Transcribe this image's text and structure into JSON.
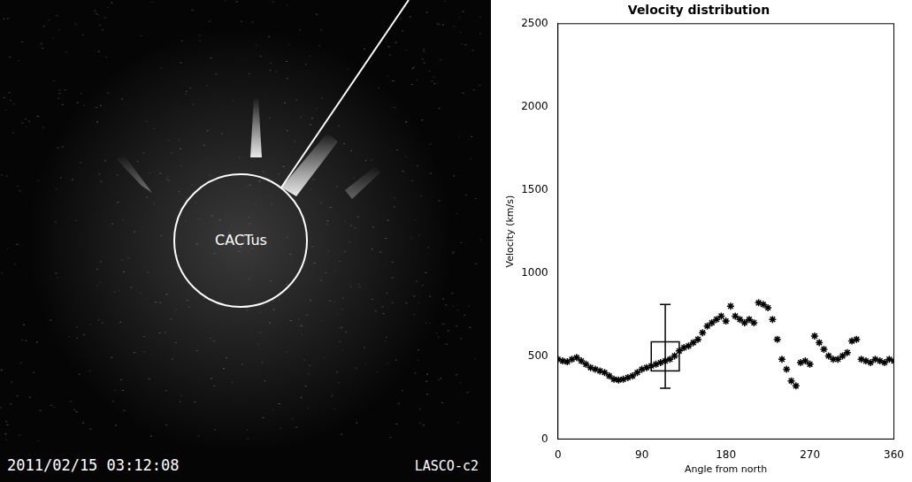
{
  "image": {
    "label": "CACTus",
    "timestamp": "2011/02/15 03:12:08",
    "instrument": "LASCO-c2"
  },
  "chart_data": {
    "type": "scatter",
    "title": "Velocity distribution",
    "x_label": "Angle from north",
    "y_label": "Velocity (km/s)",
    "x": [
      0,
      5,
      10,
      15,
      20,
      25,
      30,
      35,
      40,
      45,
      50,
      55,
      60,
      65,
      70,
      75,
      80,
      85,
      90,
      95,
      100,
      105,
      110,
      115,
      120,
      125,
      130,
      135,
      140,
      145,
      150,
      155,
      160,
      165,
      170,
      175,
      180,
      185,
      190,
      195,
      200,
      205,
      210,
      215,
      220,
      225,
      230,
      235,
      240,
      245,
      250,
      255,
      260,
      265,
      270,
      275,
      280,
      285,
      290,
      295,
      300,
      305,
      310,
      315,
      320,
      325,
      330,
      335,
      340,
      345,
      350,
      355,
      360
    ],
    "values": [
      480,
      470,
      465,
      480,
      490,
      470,
      450,
      430,
      420,
      410,
      400,
      380,
      360,
      355,
      360,
      370,
      380,
      400,
      420,
      430,
      440,
      450,
      460,
      470,
      480,
      500,
      530,
      550,
      560,
      580,
      600,
      640,
      680,
      700,
      720,
      740,
      710,
      800,
      740,
      720,
      700,
      720,
      700,
      820,
      810,
      790,
      720,
      600,
      480,
      420,
      350,
      320,
      460,
      470,
      450,
      620,
      580,
      540,
      500,
      480,
      480,
      500,
      520,
      590,
      600,
      480,
      470,
      460,
      480,
      470,
      460,
      480,
      470
    ],
    "color": "#000000",
    "marker": "star",
    "grid": false,
    "xlim": [
      0,
      360
    ],
    "xticks": [
      0,
      90,
      180,
      270,
      360
    ],
    "ylim": [
      0,
      2500
    ],
    "yticks": [
      0,
      500,
      1000,
      1500,
      2000,
      2500
    ],
    "box": {
      "x_range": [
        100,
        130
      ],
      "y_range": [
        410,
        585
      ]
    },
    "error_bar": {
      "x": 115,
      "low": 305,
      "high": 810
    }
  }
}
